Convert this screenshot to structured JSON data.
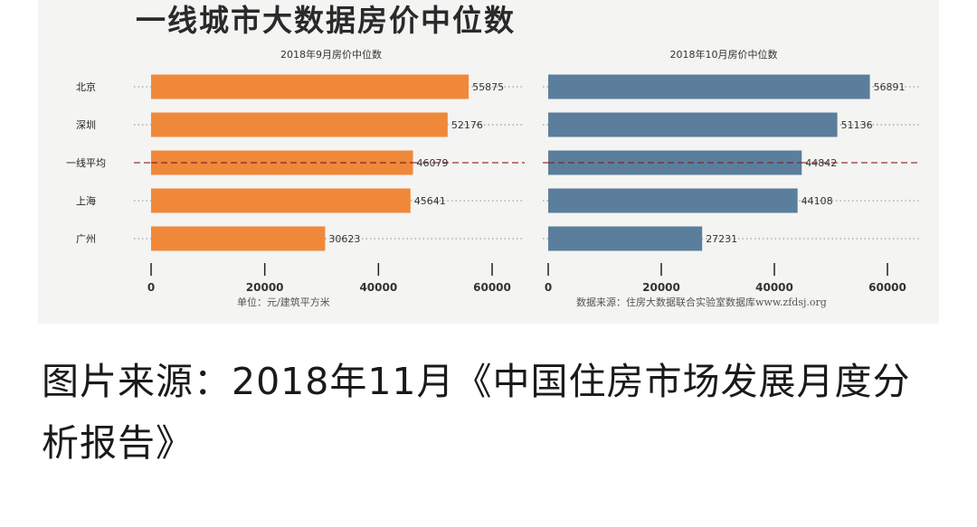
{
  "title": "一线城市大数据房价中位数",
  "unit_note": "单位：元/建筑平方米",
  "source_note": "数据来源：住房大数据联合实验室数据库www.zfdsj.org",
  "caption": "图片来源：2018年11月《中国住房市场发展月度分析报告》",
  "colors": {
    "sep": "#f0883a",
    "oct": "#5b7e9c",
    "text": "#333333",
    "title": "#2a2a2a"
  },
  "chart_data": [
    {
      "type": "bar",
      "orientation": "horizontal",
      "title": "2018年9月房价中位数",
      "categories": [
        "北京",
        "深圳",
        "一线平均",
        "上海",
        "广州"
      ],
      "values": [
        55875,
        52176,
        46079,
        45641,
        30623
      ],
      "xlim": [
        0,
        60000
      ],
      "xticks": [
        0,
        20000,
        40000,
        60000
      ],
      "average_category": "一线平均",
      "color": "#f0883a"
    },
    {
      "type": "bar",
      "orientation": "horizontal",
      "title": "2018年10月房价中位数",
      "categories": [
        "北京",
        "深圳",
        "一线平均",
        "上海",
        "广州"
      ],
      "values": [
        56891,
        51136,
        44842,
        44108,
        27231
      ],
      "xlim": [
        0,
        60000
      ],
      "xticks": [
        0,
        20000,
        40000,
        60000
      ],
      "average_category": "一线平均",
      "color": "#5b7e9c"
    }
  ]
}
